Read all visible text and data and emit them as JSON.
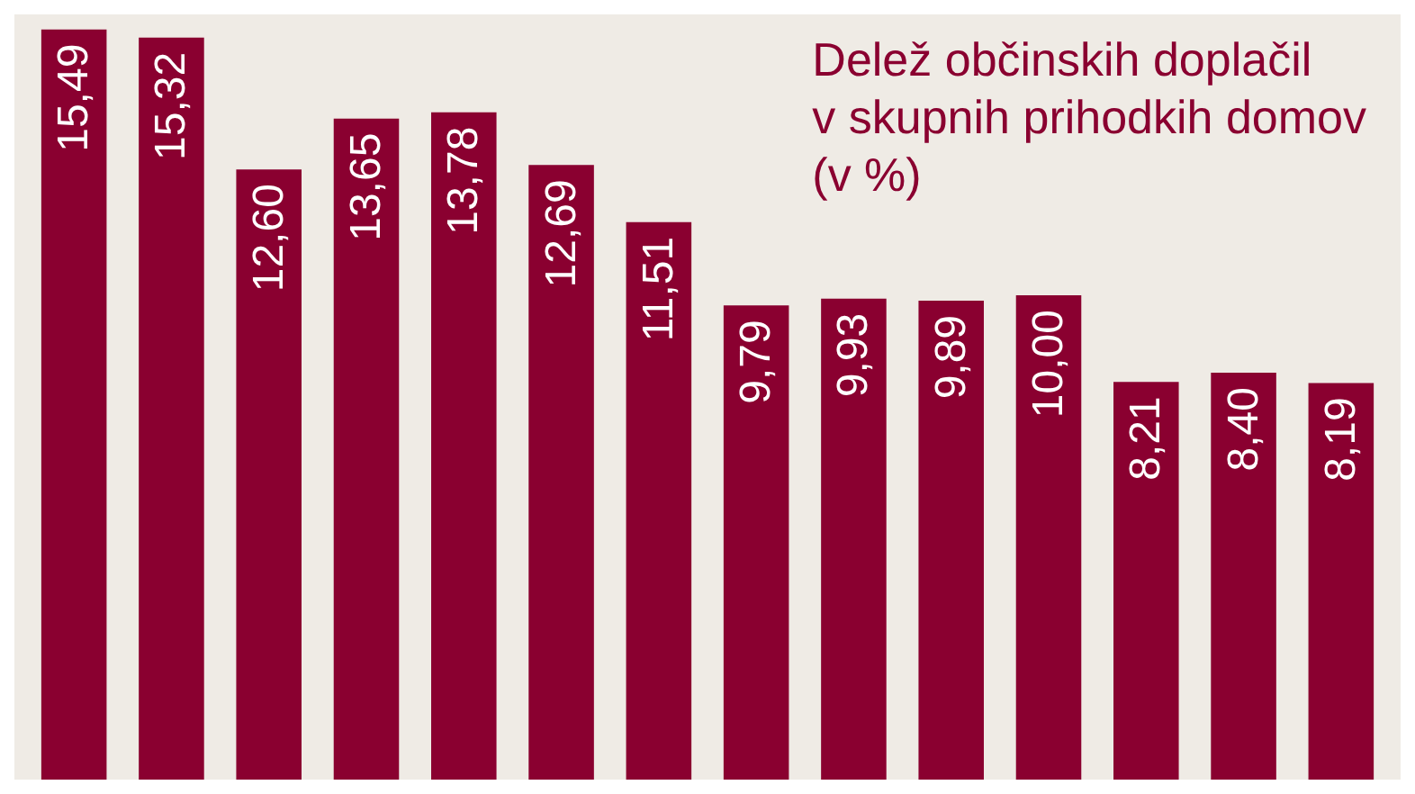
{
  "chart_data": {
    "type": "bar",
    "title": "Delež občinskih doplačil\nv skupnih prihodkih domov\n(v %)",
    "categories": [
      null,
      null,
      null,
      null,
      null,
      null,
      null,
      null,
      null,
      null,
      null,
      null,
      null,
      null
    ],
    "values": [
      15.49,
      15.32,
      12.6,
      13.65,
      13.78,
      12.69,
      11.51,
      9.79,
      9.93,
      9.89,
      10.0,
      8.21,
      8.4,
      8.19
    ],
    "value_labels": [
      "15,49",
      "15,32",
      "12,60",
      "13,65",
      "13,78",
      "12,69",
      "11,51",
      "9,79",
      "9,93",
      "9,89",
      "10,00",
      "8,21",
      "8,40",
      "8,19"
    ],
    "color": "#8a0030"
  }
}
